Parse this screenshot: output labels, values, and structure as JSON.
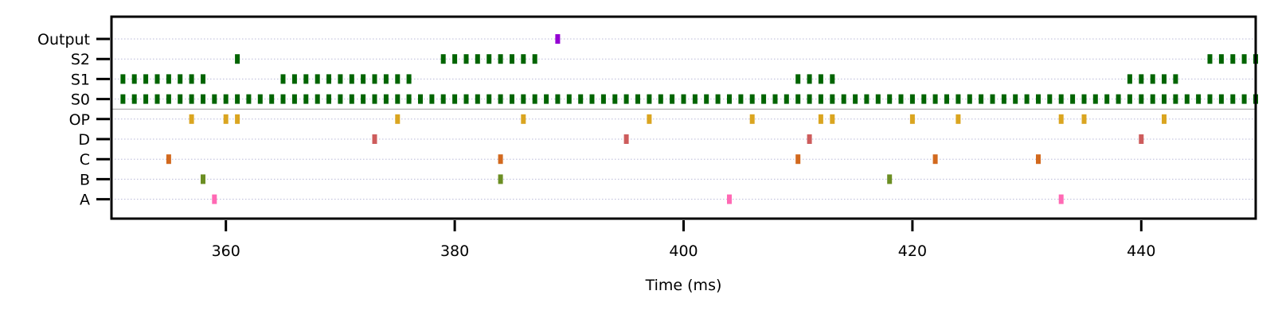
{
  "chart_data": {
    "type": "scatter",
    "title": "",
    "xlabel": "Time (ms)",
    "ylabel": "",
    "xlim": [
      350,
      450
    ],
    "xticks": [
      360,
      380,
      400,
      420,
      440
    ],
    "rows": [
      "A",
      "B",
      "C",
      "D",
      "OP",
      "S0",
      "S1",
      "S2",
      "Output"
    ],
    "separator_between": [
      "OP",
      "S0"
    ],
    "grid": "horizontal dotted",
    "series": [
      {
        "name": "A",
        "color": "#ff69b4",
        "x": [
          359,
          404,
          433
        ]
      },
      {
        "name": "B",
        "color": "#6b8e23",
        "x": [
          358,
          384,
          418
        ]
      },
      {
        "name": "C",
        "color": "#d2691e",
        "x": [
          355,
          384,
          410,
          422,
          431
        ]
      },
      {
        "name": "D",
        "color": "#cd5c5c",
        "x": [
          373,
          395,
          411,
          440
        ]
      },
      {
        "name": "OP",
        "color": "#daa520",
        "x": [
          357,
          360,
          361,
          375,
          386,
          397,
          406,
          412,
          413,
          420,
          424,
          433,
          435,
          442
        ]
      },
      {
        "name": "S0",
        "color": "#006400",
        "x": [
          351,
          352,
          353,
          354,
          355,
          356,
          357,
          358,
          359,
          360,
          361,
          362,
          363,
          364,
          365,
          366,
          367,
          368,
          369,
          370,
          371,
          372,
          373,
          374,
          375,
          376,
          377,
          378,
          379,
          380,
          381,
          382,
          383,
          384,
          385,
          386,
          387,
          388,
          389,
          390,
          391,
          392,
          393,
          394,
          395,
          396,
          397,
          398,
          399,
          400,
          401,
          402,
          403,
          404,
          405,
          406,
          407,
          408,
          409,
          410,
          411,
          412,
          413,
          414,
          415,
          416,
          417,
          418,
          419,
          420,
          421,
          422,
          423,
          424,
          425,
          426,
          427,
          428,
          429,
          430,
          431,
          432,
          433,
          434,
          435,
          436,
          437,
          438,
          439,
          440,
          441,
          442,
          443,
          444,
          445,
          446,
          447,
          448,
          449,
          450
        ]
      },
      {
        "name": "S1",
        "color": "#006400",
        "x": [
          351,
          352,
          353,
          354,
          355,
          356,
          357,
          358,
          365,
          366,
          367,
          368,
          369,
          370,
          371,
          372,
          373,
          374,
          375,
          376,
          410,
          411,
          412,
          413,
          439,
          440,
          441,
          442,
          443
        ]
      },
      {
        "name": "S2",
        "color": "#006400",
        "x": [
          361,
          379,
          380,
          381,
          382,
          383,
          384,
          385,
          386,
          387,
          446,
          447,
          448,
          449,
          450
        ]
      },
      {
        "name": "Output",
        "color": "#9400d3",
        "x": [
          389
        ]
      }
    ]
  }
}
